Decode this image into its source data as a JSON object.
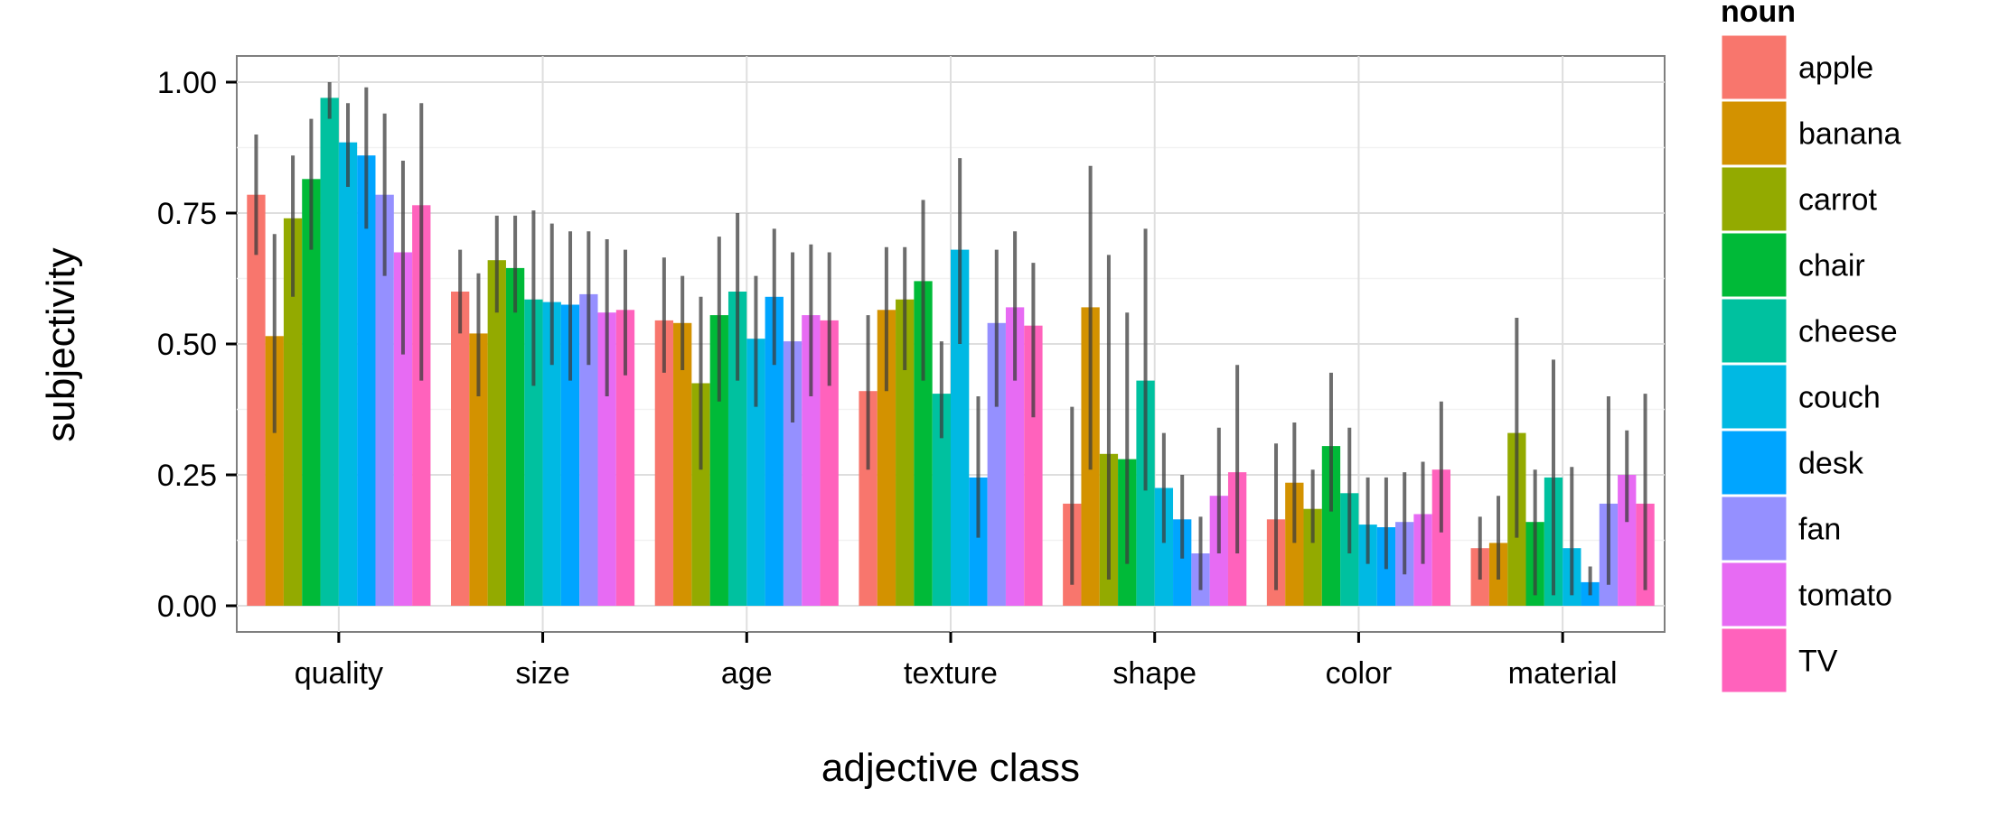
{
  "chart_data": {
    "type": "bar",
    "xlabel": "adjective class",
    "ylabel": "subjectivity",
    "ylim": [
      -0.05,
      1.05
    ],
    "y_ticks": [
      "0.00",
      "0.25",
      "0.50",
      "0.75",
      "1.00"
    ],
    "y_tick_values": [
      0,
      0.25,
      0.5,
      0.75,
      1.0
    ],
    "grid": true,
    "legend_position": "right",
    "legend_title": "noun",
    "categories": [
      "quality",
      "size",
      "age",
      "texture",
      "shape",
      "color",
      "material"
    ],
    "series": [
      {
        "name": "apple",
        "color": "#F8766D",
        "values": [
          0.785,
          0.6,
          0.545,
          0.41,
          0.195,
          0.165,
          0.11
        ],
        "ci_low": [
          0.67,
          0.52,
          0.445,
          0.26,
          0.04,
          0.03,
          0.05
        ],
        "ci_high": [
          0.9,
          0.68,
          0.665,
          0.555,
          0.38,
          0.31,
          0.17
        ]
      },
      {
        "name": "banana",
        "color": "#D39200",
        "values": [
          0.515,
          0.52,
          0.54,
          0.565,
          0.57,
          0.235,
          0.12
        ],
        "ci_low": [
          0.33,
          0.4,
          0.45,
          0.41,
          0.26,
          0.12,
          0.05
        ],
        "ci_high": [
          0.71,
          0.635,
          0.63,
          0.685,
          0.84,
          0.35,
          0.21
        ]
      },
      {
        "name": "carrot",
        "color": "#93AA00",
        "values": [
          0.74,
          0.66,
          0.425,
          0.585,
          0.29,
          0.185,
          0.33
        ],
        "ci_low": [
          0.59,
          0.56,
          0.26,
          0.45,
          0.05,
          0.12,
          0.13
        ],
        "ci_high": [
          0.86,
          0.745,
          0.59,
          0.685,
          0.67,
          0.26,
          0.55
        ]
      },
      {
        "name": "chair",
        "color": "#00BA38",
        "values": [
          0.815,
          0.645,
          0.555,
          0.62,
          0.28,
          0.305,
          0.16
        ],
        "ci_low": [
          0.68,
          0.56,
          0.39,
          0.43,
          0.08,
          0.18,
          0.02
        ],
        "ci_high": [
          0.93,
          0.745,
          0.705,
          0.775,
          0.56,
          0.445,
          0.26
        ]
      },
      {
        "name": "cheese",
        "color": "#00C19F",
        "values": [
          0.97,
          0.585,
          0.6,
          0.405,
          0.43,
          0.215,
          0.245
        ],
        "ci_low": [
          0.93,
          0.42,
          0.43,
          0.32,
          0.22,
          0.1,
          0.02
        ],
        "ci_high": [
          1.0,
          0.755,
          0.75,
          0.505,
          0.72,
          0.34,
          0.47
        ]
      },
      {
        "name": "couch",
        "color": "#00B9E3",
        "values": [
          0.885,
          0.58,
          0.51,
          0.68,
          0.225,
          0.155,
          0.11
        ],
        "ci_low": [
          0.8,
          0.46,
          0.38,
          0.5,
          0.12,
          0.08,
          0.02
        ],
        "ci_high": [
          0.96,
          0.73,
          0.63,
          0.855,
          0.33,
          0.245,
          0.265
        ]
      },
      {
        "name": "desk",
        "color": "#00A5FF",
        "values": [
          0.86,
          0.575,
          0.59,
          0.245,
          0.165,
          0.15,
          0.045
        ],
        "ci_low": [
          0.72,
          0.43,
          0.46,
          0.13,
          0.09,
          0.07,
          0.02
        ],
        "ci_high": [
          0.99,
          0.715,
          0.72,
          0.4,
          0.25,
          0.245,
          0.075
        ]
      },
      {
        "name": "fan",
        "color": "#9590FF",
        "values": [
          0.785,
          0.595,
          0.505,
          0.54,
          0.1,
          0.16,
          0.195
        ],
        "ci_low": [
          0.63,
          0.46,
          0.35,
          0.38,
          0.03,
          0.06,
          0.04
        ],
        "ci_high": [
          0.94,
          0.715,
          0.675,
          0.68,
          0.17,
          0.255,
          0.4
        ]
      },
      {
        "name": "tomato",
        "color": "#E76BF3",
        "values": [
          0.675,
          0.56,
          0.555,
          0.57,
          0.21,
          0.175,
          0.25
        ],
        "ci_low": [
          0.48,
          0.4,
          0.4,
          0.43,
          0.1,
          0.08,
          0.16
        ],
        "ci_high": [
          0.85,
          0.7,
          0.69,
          0.715,
          0.34,
          0.275,
          0.335
        ]
      },
      {
        "name": "TV",
        "color": "#FF62BC",
        "values": [
          0.765,
          0.565,
          0.545,
          0.535,
          0.255,
          0.26,
          0.195
        ],
        "ci_low": [
          0.43,
          0.44,
          0.42,
          0.36,
          0.1,
          0.14,
          0.03
        ],
        "ci_high": [
          0.96,
          0.68,
          0.675,
          0.655,
          0.46,
          0.39,
          0.405
        ]
      }
    ]
  }
}
